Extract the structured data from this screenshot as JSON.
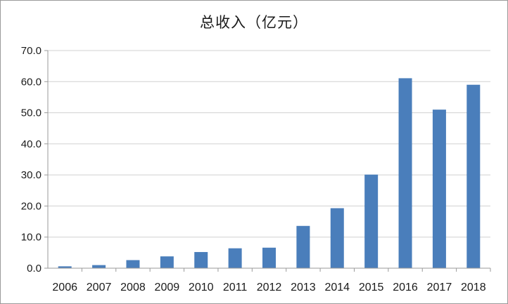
{
  "chart_data": {
    "type": "bar",
    "title": "总收入（亿元）",
    "categories": [
      "2006",
      "2007",
      "2008",
      "2009",
      "2010",
      "2011",
      "2012",
      "2013",
      "2014",
      "2015",
      "2016",
      "2017",
      "2018"
    ],
    "series": [
      {
        "values": [
          0.6,
          1.0,
          2.6,
          3.8,
          5.2,
          6.4,
          6.6,
          13.6,
          19.3,
          30.1,
          61.1,
          51.0,
          59.0
        ]
      }
    ],
    "ylim": [
      0,
      70
    ],
    "yticks": [
      "0.0",
      "10.0",
      "20.0",
      "30.0",
      "40.0",
      "50.0",
      "60.0",
      "70.0"
    ],
    "ytick_values": [
      0,
      10,
      20,
      30,
      40,
      50,
      60,
      70
    ],
    "grid": true,
    "legend": "none",
    "colors": {
      "bar": "#4a7ebb",
      "grid": "#d0d0d0",
      "axis": "#9a9a9a"
    }
  }
}
